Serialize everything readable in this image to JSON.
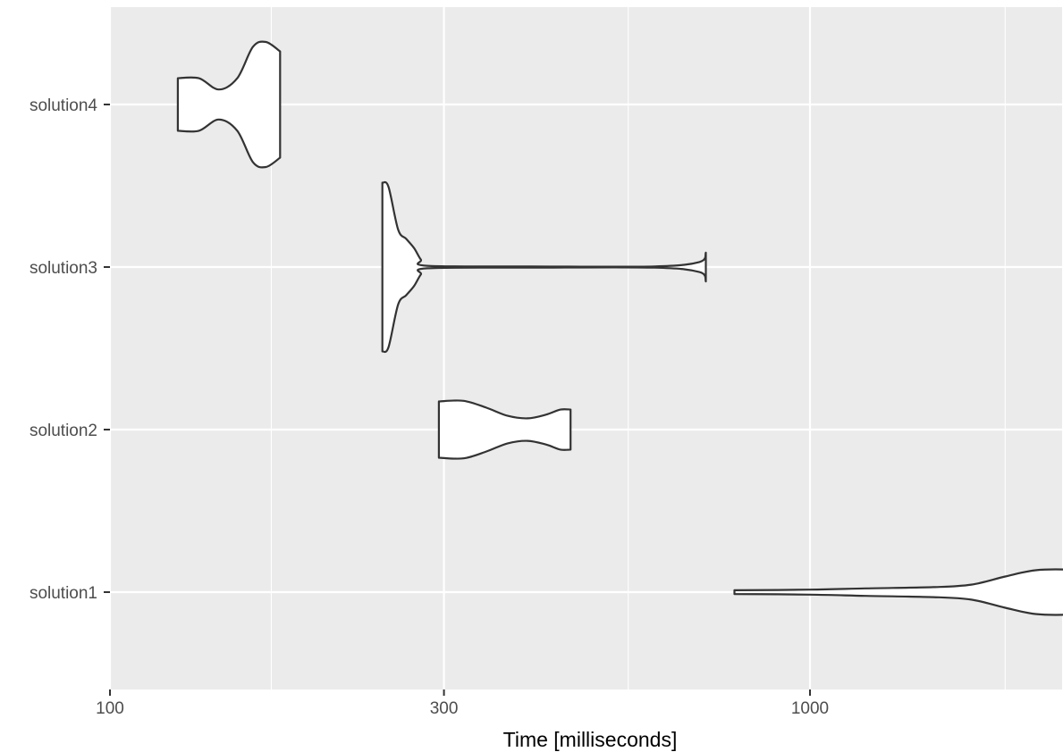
{
  "chart_data": {
    "type": "violin",
    "orientation": "horizontal",
    "title": "",
    "xlabel": "Time [milliseconds]",
    "ylabel": "",
    "x_scale": "log10",
    "xlim": [
      100,
      2900
    ],
    "x_ticks": [
      100,
      300,
      1000
    ],
    "x_tick_labels": [
      "100",
      "300",
      "1000"
    ],
    "x_minor_ticks": [
      170,
      550,
      1900
    ],
    "categories": [
      "solution1",
      "solution2",
      "solution3",
      "solution4"
    ],
    "grid": true,
    "legend": "none",
    "colors": {
      "panel": "#ebebeb",
      "grid": "#ffffff",
      "fill": "#ffffff",
      "outline": "#333333",
      "tick_label": "#4d4d4d"
    },
    "series": [
      {
        "category": "solution1",
        "range": [
          780,
          2600
        ],
        "density": [
          {
            "x": 780,
            "w": 0.03
          },
          {
            "x": 1000,
            "w": 0.04
          },
          {
            "x": 1200,
            "w": 0.06
          },
          {
            "x": 1500,
            "w": 0.08
          },
          {
            "x": 1700,
            "w": 0.12
          },
          {
            "x": 1900,
            "w": 0.25
          },
          {
            "x": 2100,
            "w": 0.35
          },
          {
            "x": 2350,
            "w": 0.36
          },
          {
            "x": 2600,
            "w": 0.32
          }
        ]
      },
      {
        "category": "solution2",
        "range": [
          295,
          455
        ],
        "density": [
          {
            "x": 295,
            "w": 0.45
          },
          {
            "x": 320,
            "w": 0.46
          },
          {
            "x": 345,
            "w": 0.35
          },
          {
            "x": 370,
            "w": 0.22
          },
          {
            "x": 395,
            "w": 0.18
          },
          {
            "x": 420,
            "w": 0.24
          },
          {
            "x": 440,
            "w": 0.32
          },
          {
            "x": 455,
            "w": 0.32
          }
        ]
      },
      {
        "category": "solution3",
        "range": [
          245,
          710
        ],
        "density": [
          {
            "x": 245,
            "w": 1.35
          },
          {
            "x": 250,
            "w": 1.28
          },
          {
            "x": 258,
            "w": 0.6
          },
          {
            "x": 265,
            "w": 0.45
          },
          {
            "x": 272,
            "w": 0.3
          },
          {
            "x": 278,
            "w": 0.12
          },
          {
            "x": 284,
            "w": 0.02
          },
          {
            "x": 400,
            "w": 0.01
          },
          {
            "x": 600,
            "w": 0.01
          },
          {
            "x": 695,
            "w": 0.08
          },
          {
            "x": 710,
            "w": 0.23
          }
        ]
      },
      {
        "category": "solution4",
        "range": [
          125,
          175
        ],
        "density": [
          {
            "x": 125,
            "w": 0.42
          },
          {
            "x": 134,
            "w": 0.42
          },
          {
            "x": 143,
            "w": 0.24
          },
          {
            "x": 152,
            "w": 0.42
          },
          {
            "x": 160,
            "w": 0.92
          },
          {
            "x": 167,
            "w": 1.0
          },
          {
            "x": 175,
            "w": 0.85
          }
        ]
      }
    ]
  }
}
